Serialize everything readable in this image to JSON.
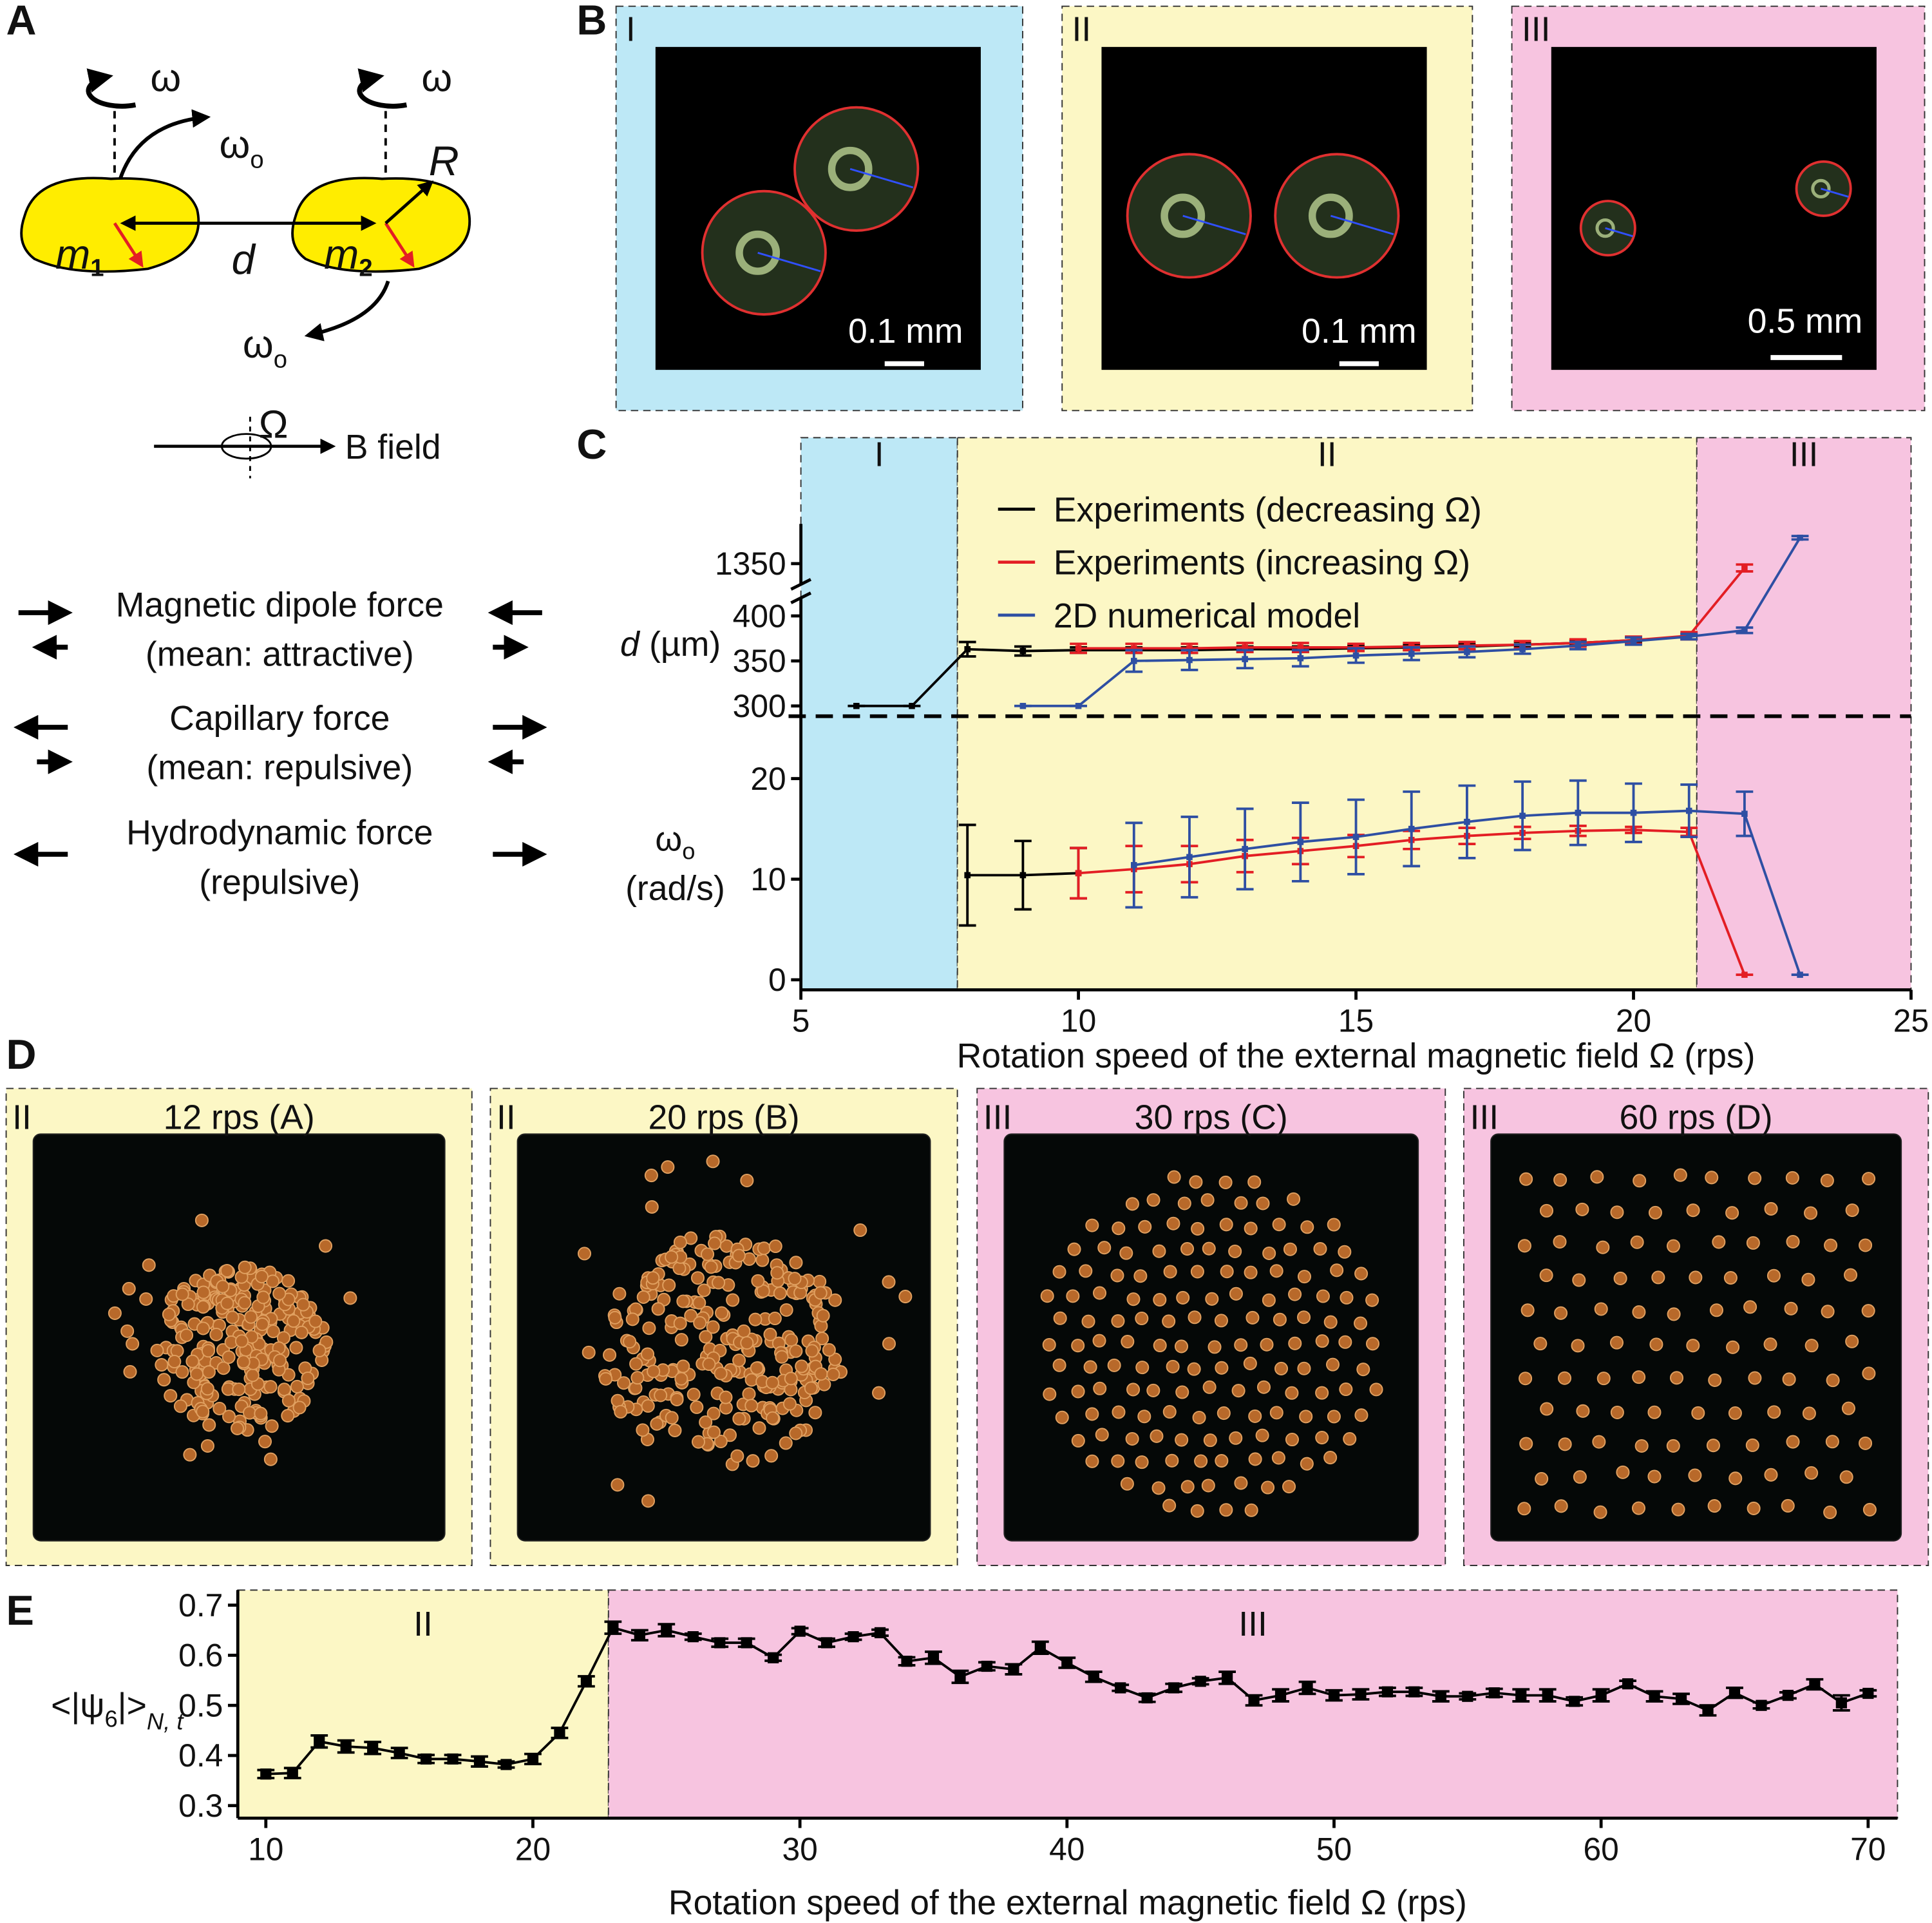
{
  "panels": {
    "A": {
      "letter": "A",
      "omega": [
        "ω",
        "ω"
      ],
      "omega_o": [
        {
          "symbol": "ω",
          "sub": "o"
        },
        {
          "symbol": "ω",
          "sub": "o"
        }
      ],
      "R": "R",
      "m1": {
        "symbol": "m",
        "sub": "1"
      },
      "m2": {
        "symbol": "m",
        "sub": "2"
      },
      "d": "d",
      "Omega": "Ω",
      "field": "B field",
      "forces": [
        {
          "name": "Magnetic dipole force",
          "note": "(mean: attractive)"
        },
        {
          "name": "Capillary force",
          "note": "(mean: repulsive)"
        },
        {
          "name": "Hydrodynamic force",
          "note": "(repulsive)"
        }
      ]
    },
    "B": {
      "letter": "B",
      "images": [
        {
          "regime": "I",
          "scale": "0.1 mm"
        },
        {
          "regime": "II",
          "scale": "0.1 mm"
        },
        {
          "regime": "III",
          "scale": "0.5 mm"
        }
      ]
    },
    "C": {
      "letter": "C"
    },
    "D": {
      "letter": "D",
      "images": [
        {
          "regime": "II",
          "title": "12 rps (A)"
        },
        {
          "regime": "II",
          "title": "20 rps (B)"
        },
        {
          "regime": "III",
          "title": "30 rps (C)"
        },
        {
          "regime": "III",
          "title": "60 rps (D)"
        }
      ]
    },
    "E": {
      "letter": "E"
    }
  },
  "chart_data": [
    {
      "type": "line",
      "ylabel": {
        "symbol": "d",
        "unit": "(µm)"
      },
      "xlim": [
        5,
        25
      ],
      "ylim": [
        288.6,
        1396
      ],
      "ybreak": [
        420,
        1326
      ],
      "yticks": [
        300,
        350,
        400,
        1350
      ],
      "legend": "top-center",
      "regions": [
        {
          "label": "I",
          "from": 5,
          "to": 7.82,
          "color": "#bde8f6"
        },
        {
          "label": "II",
          "from": 7.82,
          "to": 21.14,
          "color": "#fcf7c5"
        },
        {
          "label": "III",
          "from": 21.14,
          "to": 25,
          "color": "#f7c4e0"
        }
      ],
      "series": [
        {
          "name": "Experiments (decreasing Ω)",
          "color": "#000000",
          "x": [
            6,
            7,
            8,
            9,
            10,
            11,
            12,
            13,
            14,
            15,
            16,
            17,
            18,
            19,
            20,
            21
          ],
          "values": [
            300,
            300,
            363,
            361,
            362,
            362,
            362,
            363,
            363,
            364,
            365,
            366,
            368,
            370,
            373,
            377
          ],
          "errors": [
            0,
            0,
            8,
            5,
            3,
            3,
            3,
            3,
            3,
            3,
            3,
            3,
            3,
            3,
            3,
            3
          ]
        },
        {
          "name": "Experiments (increasing Ω)",
          "color": "#e31e24",
          "x": [
            10,
            11,
            12,
            13,
            14,
            15,
            16,
            17,
            18,
            19,
            20,
            21,
            22
          ],
          "values": [
            364,
            364,
            364,
            365,
            365,
            365,
            366,
            367,
            368,
            370,
            373,
            378,
            1345
          ],
          "errors": [
            5,
            5,
            5,
            5,
            5,
            4,
            4,
            4,
            4,
            4,
            4,
            4,
            4
          ]
        },
        {
          "name": "2D numerical model",
          "color": "#2e4fa3",
          "x": [
            9,
            10,
            11,
            12,
            13,
            14,
            15,
            16,
            17,
            18,
            19,
            20,
            21,
            22,
            23
          ],
          "values": [
            300,
            300,
            350,
            351,
            352,
            353,
            356,
            358,
            360,
            363,
            367,
            372,
            377,
            384,
            1380
          ],
          "errors": [
            0,
            0,
            12,
            11,
            10,
            9,
            8,
            7,
            6,
            5,
            4,
            4,
            3,
            3,
            2
          ]
        }
      ]
    },
    {
      "type": "line",
      "ylabel": {
        "symbol": "ω",
        "subscript": "o",
        "unit": "(rad/s)"
      },
      "xlabel": "Rotation speed of the external magnetic field Ω (rps)",
      "xlim": [
        5,
        25
      ],
      "xticks": [
        5,
        10,
        15,
        20,
        25
      ],
      "ylim": [
        -1,
        26.2
      ],
      "yticks": [
        0,
        10,
        20
      ],
      "series": [
        {
          "color": "#000000",
          "x": [
            8,
            9,
            10
          ],
          "values": [
            10.4,
            10.4,
            10.6
          ],
          "errors": [
            5,
            3.4,
            2.5
          ]
        },
        {
          "color": "#e31e24",
          "x": [
            10,
            11,
            12,
            13,
            14,
            15,
            16,
            17,
            18,
            19,
            20,
            21,
            22
          ],
          "values": [
            10.6,
            11,
            11.5,
            12.3,
            12.8,
            13.3,
            13.9,
            14.3,
            14.6,
            14.8,
            14.9,
            14.7,
            0.5
          ],
          "errors": [
            2.5,
            2.3,
            1.8,
            1.6,
            1.3,
            1.1,
            0.9,
            0.8,
            0.6,
            0.5,
            0.3,
            0.4,
            0
          ]
        },
        {
          "color": "#2e4fa3",
          "x": [
            11,
            12,
            13,
            14,
            15,
            16,
            17,
            18,
            19,
            20,
            21,
            22,
            23
          ],
          "values": [
            11.4,
            12.2,
            13,
            13.7,
            14.2,
            15,
            15.7,
            16.3,
            16.6,
            16.6,
            16.8,
            16.5,
            0.5
          ],
          "errors": [
            4.2,
            4,
            4,
            3.9,
            3.7,
            3.7,
            3.6,
            3.4,
            3.2,
            2.9,
            2.6,
            2.2,
            0
          ]
        }
      ]
    },
    {
      "type": "line",
      "marker": "square",
      "ylabel": {
        "open": "<|ψ",
        "subscript": "6",
        "close": "|>",
        "index": "N, t"
      },
      "xlabel": "Rotation speed of the external magnetic field Ω (rps)",
      "xlim": [
        8.95,
        71.1
      ],
      "xticks": [
        10,
        20,
        30,
        40,
        50,
        60,
        70
      ],
      "ylim": [
        0.275,
        0.73
      ],
      "yticks": [
        0.3,
        0.4,
        0.5,
        0.6,
        0.7
      ],
      "regions": [
        {
          "label": "II",
          "from": 8.95,
          "to": 22.83,
          "color": "#fcf7c5"
        },
        {
          "label": "III",
          "from": 22.83,
          "to": 71.1,
          "color": "#f7c4e0"
        }
      ],
      "series": [
        {
          "color": "#000000",
          "x": [
            10,
            11,
            12,
            13,
            14,
            15,
            16,
            17,
            18,
            19,
            20,
            21,
            22,
            23,
            24,
            25,
            26,
            27,
            28,
            29,
            30,
            31,
            32,
            33,
            34,
            35,
            36,
            37,
            38,
            39,
            40,
            41,
            42,
            43,
            44,
            45,
            46,
            47,
            48,
            49,
            50,
            51,
            52,
            53,
            54,
            55,
            56,
            57,
            58,
            59,
            60,
            61,
            62,
            63,
            64,
            65,
            66,
            67,
            68,
            69,
            70
          ],
          "values": [
            0.363,
            0.365,
            0.428,
            0.418,
            0.415,
            0.405,
            0.393,
            0.393,
            0.388,
            0.382,
            0.393,
            0.445,
            0.548,
            0.655,
            0.64,
            0.65,
            0.637,
            0.625,
            0.625,
            0.595,
            0.648,
            0.625,
            0.637,
            0.645,
            0.588,
            0.595,
            0.557,
            0.578,
            0.572,
            0.615,
            0.585,
            0.557,
            0.535,
            0.515,
            0.535,
            0.548,
            0.555,
            0.51,
            0.52,
            0.535,
            0.52,
            0.522,
            0.527,
            0.527,
            0.518,
            0.518,
            0.525,
            0.52,
            0.52,
            0.508,
            0.52,
            0.543,
            0.518,
            0.513,
            0.49,
            0.525,
            0.5,
            0.52,
            0.542,
            0.505,
            0.524
          ],
          "errors": [
            0.008,
            0.01,
            0.012,
            0.012,
            0.012,
            0.01,
            0.008,
            0.008,
            0.01,
            0.006,
            0.01,
            0.01,
            0.01,
            0.012,
            0.01,
            0.012,
            0.006,
            0.008,
            0.008,
            0.006,
            0.006,
            0.008,
            0.006,
            0.006,
            0.008,
            0.012,
            0.012,
            0.008,
            0.01,
            0.012,
            0.01,
            0.01,
            0.006,
            0.008,
            0.008,
            0.006,
            0.012,
            0.01,
            0.012,
            0.012,
            0.01,
            0.01,
            0.008,
            0.008,
            0.01,
            0.006,
            0.008,
            0.012,
            0.012,
            0.008,
            0.012,
            0.006,
            0.01,
            0.01,
            0.01,
            0.01,
            0.006,
            0.006,
            0.01,
            0.015,
            0.006
          ]
        }
      ]
    }
  ]
}
